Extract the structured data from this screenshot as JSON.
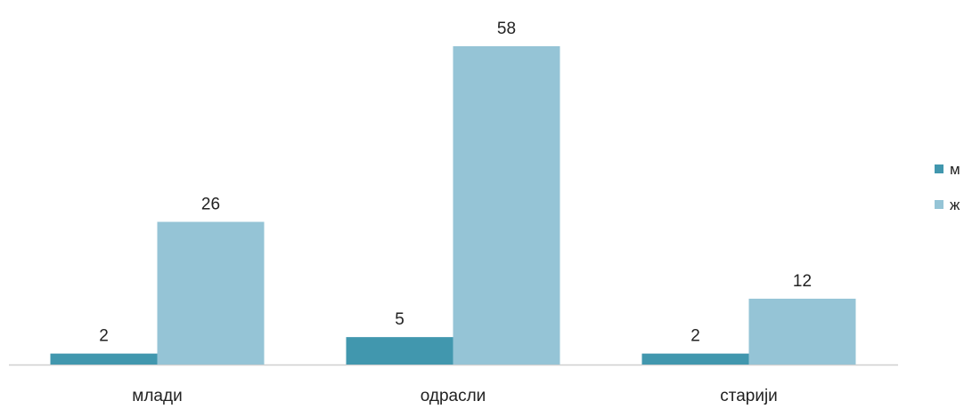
{
  "chart_data": {
    "type": "bar",
    "title": "",
    "xlabel": "",
    "ylabel": "",
    "categories": [
      "млади",
      "одрасли",
      "старији"
    ],
    "series": [
      {
        "name": "м",
        "values": [
          2,
          5,
          2
        ],
        "color": "#4197ae"
      },
      {
        "name": "ж",
        "values": [
          26,
          58,
          12
        ],
        "color": "#95c4d6"
      }
    ],
    "ylim": [
      0,
      58
    ],
    "grid": false,
    "legend": "right"
  }
}
